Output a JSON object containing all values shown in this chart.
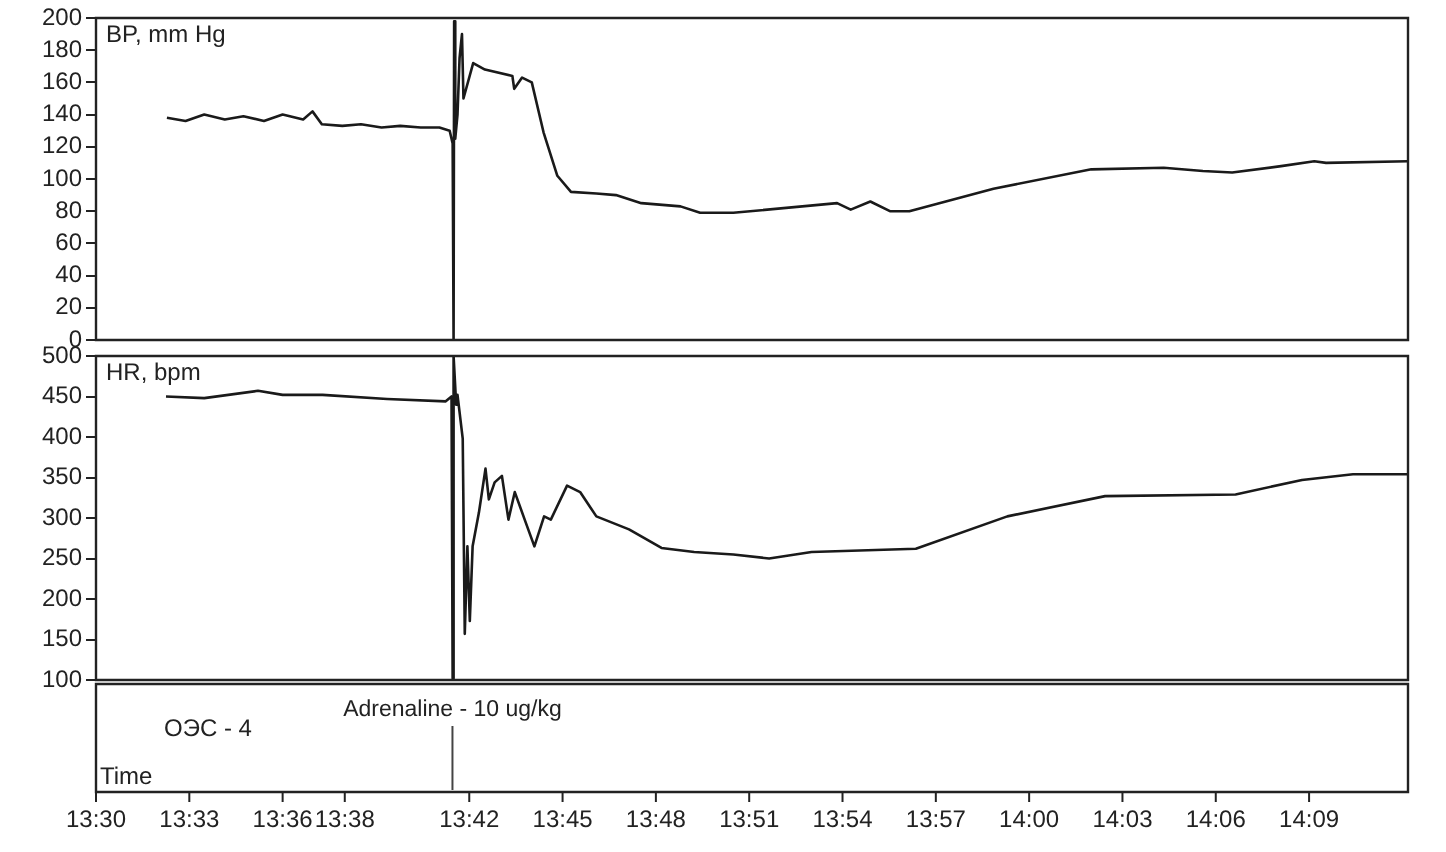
{
  "chart_data": [
    {
      "type": "line",
      "ylabel": "BP, mm Hg",
      "marker": "none",
      "tick_labels": "y",
      "xlim": [
        13.5,
        14.203
      ],
      "ylim": [
        0,
        200
      ],
      "yticks": [
        0,
        20,
        40,
        60,
        80,
        100,
        120,
        140,
        160,
        180,
        200
      ],
      "series": [
        {
          "color": "#1a1a1a",
          "x": [
            13.538,
            13.548,
            13.558,
            13.569,
            13.579,
            13.59,
            13.6,
            13.611,
            13.616,
            13.621,
            13.632,
            13.642,
            13.653,
            13.663,
            13.674,
            13.684,
            13.6895,
            13.6911,
            13.6916,
            13.6919,
            13.6925,
            13.6937,
            13.6948,
            13.6961,
            13.6969,
            13.7021,
            13.7084,
            13.7231,
            13.7241,
            13.7283,
            13.7335,
            13.7398,
            13.7472,
            13.7545,
            13.7681,
            13.7786,
            13.7922,
            13.8132,
            13.8237,
            13.8415,
            13.8971,
            13.9044,
            13.9149,
            13.9254,
            13.9358,
            13.9809,
            14.0333,
            14.0721,
            14.0931,
            14.1088,
            14.135,
            14.1528,
            14.1591,
            14.203
          ],
          "values": [
            138,
            136,
            140,
            137,
            139,
            136,
            140,
            137,
            142,
            134,
            133,
            134,
            132,
            133,
            132,
            132,
            130,
            122,
            0,
            198,
            125,
            140,
            175,
            190,
            150,
            172,
            168,
            164,
            156,
            163,
            160,
            129,
            102,
            92,
            91,
            90,
            85,
            83,
            79,
            79,
            85,
            81,
            86,
            80,
            80,
            94,
            106,
            107,
            105,
            104,
            108,
            111,
            110,
            111
          ]
        }
      ]
    },
    {
      "type": "line",
      "ylabel": "HR, bpm",
      "xlabel": "Time",
      "marker": "none",
      "xlim": [
        13.5,
        14.203
      ],
      "xticks": [
        {
          "value": 13.5,
          "label": "13:30"
        },
        {
          "value": 13.55,
          "label": "13:33"
        },
        {
          "value": 13.6,
          "label": "13:36"
        },
        {
          "value": 13.6333,
          "label": "13:38"
        },
        {
          "value": 13.7,
          "label": "13:42"
        },
        {
          "value": 13.75,
          "label": "13:45"
        },
        {
          "value": 13.8,
          "label": "13:48"
        },
        {
          "value": 13.85,
          "label": "13:51"
        },
        {
          "value": 13.9,
          "label": "13:54"
        },
        {
          "value": 13.95,
          "label": "13:57"
        },
        {
          "value": 14,
          "label": "14:00"
        },
        {
          "value": 14.05,
          "label": "14:03"
        },
        {
          "value": 14.1,
          "label": "14:06"
        },
        {
          "value": 14.15,
          "label": "14:09"
        }
      ],
      "ylim": [
        100,
        500
      ],
      "yticks": [
        100,
        150,
        200,
        250,
        300,
        350,
        400,
        450,
        500
      ],
      "ref_lines": [
        {
          "axis": "x",
          "value": 13.691,
          "label": "Adrenaline - 10 ug/kg"
        }
      ],
      "annotations": [
        "ОЭС - 4"
      ],
      "series": [
        {
          "color": "#1a1a1a",
          "x": [
            13.5375,
            13.558,
            13.5868,
            13.6,
            13.6214,
            13.656,
            13.6874,
            13.6905,
            13.6911,
            13.6916,
            13.693,
            13.6937,
            13.6965,
            13.6976,
            13.699,
            13.7003,
            13.7018,
            13.7052,
            13.7087,
            13.7105,
            13.7136,
            13.7175,
            13.721,
            13.7244,
            13.7297,
            13.7349,
            13.7401,
            13.7437,
            13.7524,
            13.7594,
            13.7681,
            13.7856,
            13.803,
            13.8205,
            13.8415,
            13.8607,
            13.8834,
            13.9393,
            13.9883,
            14.0407,
            14.1106,
            14.1462,
            14.1735,
            14.203
          ],
          "values": [
            450,
            448,
            457,
            452,
            452,
            447,
            444,
            450,
            102,
            500,
            440,
            452,
            398,
            157,
            265,
            173,
            265,
            307,
            361,
            323,
            344,
            352,
            298,
            332,
            298,
            265,
            302,
            298,
            340,
            332,
            302,
            286,
            263,
            258,
            255,
            250,
            258,
            262,
            302,
            327,
            329,
            347,
            354,
            354
          ]
        }
      ]
    }
  ]
}
